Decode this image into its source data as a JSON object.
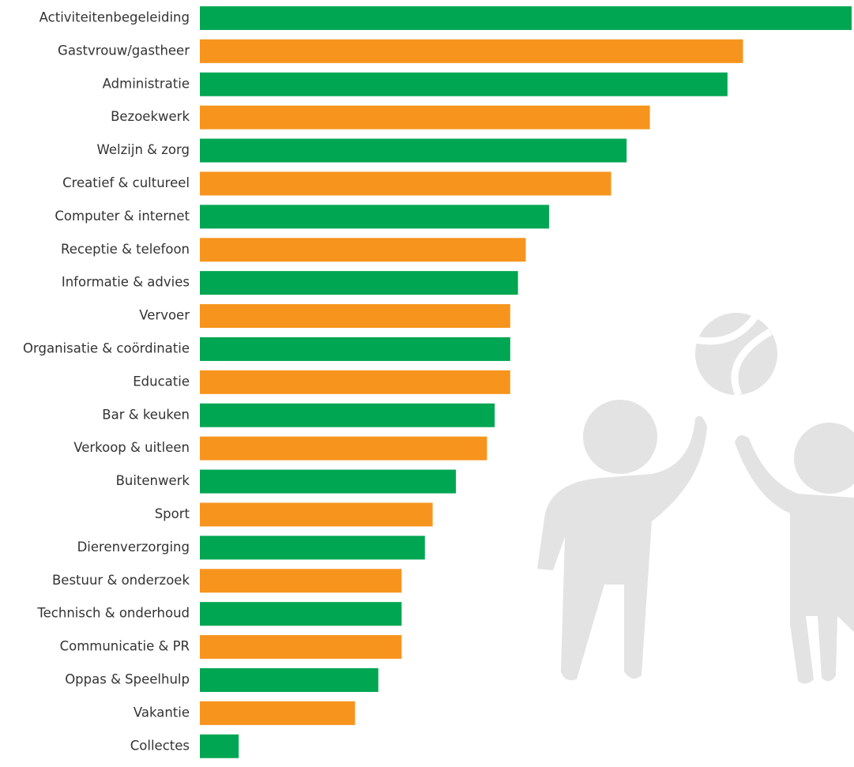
{
  "chart_data": {
    "type": "hbar",
    "categories": [
      "Activiteitenbegeleiding",
      "Gastvrouw/gastheer",
      "Administratie",
      "Bezoekwerk",
      "Welzijn & zorg",
      "Creatief & cultureel",
      "Computer & internet",
      "Receptie & telefoon",
      "Informatie & advies",
      "Vervoer",
      "Organisatie & coördinatie",
      "Educatie",
      "Bar & keuken",
      "Verkoop & uitleen",
      "Buitenwerk",
      "Sport",
      "Dierenverzorging",
      "Bestuur & onderzoek",
      "Technisch & onderhoud",
      "Communicatie & PR",
      "Oppas & Speelhulp",
      "Vakantie",
      "Collectes"
    ],
    "values": [
      84,
      70,
      68,
      58,
      55,
      53,
      45,
      42,
      41,
      40,
      40,
      40,
      38,
      37,
      33,
      30,
      29,
      26,
      26,
      26,
      23,
      20,
      5
    ],
    "colors": [
      "#00a651",
      "#f7941d"
    ],
    "xlim": [
      0,
      84
    ]
  }
}
